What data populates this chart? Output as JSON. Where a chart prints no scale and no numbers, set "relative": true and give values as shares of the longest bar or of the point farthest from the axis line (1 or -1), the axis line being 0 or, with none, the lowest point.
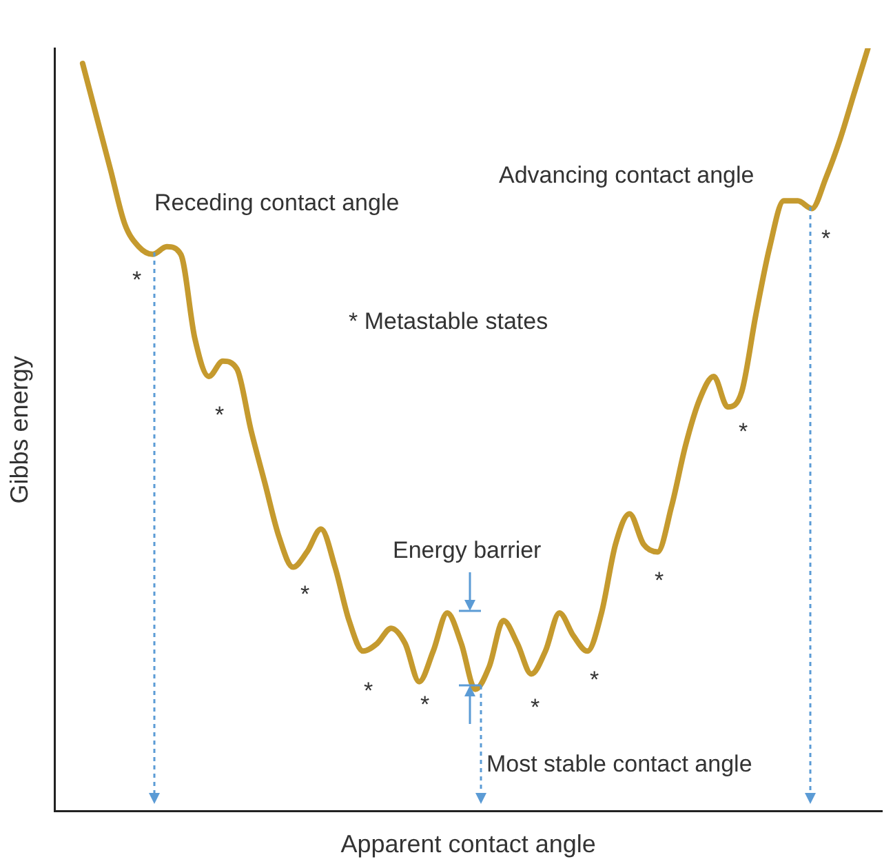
{
  "chart_data": {
    "type": "line",
    "relative": true,
    "xlabel": "Apparent contact angle",
    "ylabel": "Gibbs energy",
    "color": "#c59a2e",
    "marker": "none",
    "line_style": "solid",
    "legend": false,
    "grid": false,
    "categories": [
      null,
      null,
      null,
      null,
      null,
      null,
      null,
      null,
      null,
      null,
      null,
      null,
      null,
      null,
      null,
      null,
      null,
      null,
      null,
      null,
      null,
      null,
      null,
      null,
      null,
      null,
      null,
      null,
      null,
      null,
      null,
      null,
      null,
      null,
      null,
      null,
      null,
      null,
      null,
      null,
      null,
      null,
      null,
      null,
      null,
      null,
      null,
      null,
      null,
      null,
      null,
      null,
      null,
      null,
      null,
      null,
      null,
      null,
      null,
      null
    ],
    "values": [
      null,
      null,
      0.98,
      0.91,
      0.84,
      0.77,
      0.74,
      0.73,
      0.74,
      0.73,
      0.62,
      0.57,
      0.59,
      0.58,
      0.5,
      0.43,
      0.36,
      0.32,
      0.34,
      0.37,
      0.32,
      0.25,
      0.21,
      0.22,
      0.24,
      0.22,
      0.17,
      0.21,
      0.26,
      0.22,
      0.16,
      0.19,
      0.25,
      0.22,
      0.18,
      0.21,
      0.26,
      0.23,
      0.21,
      0.26,
      0.35,
      0.39,
      0.35,
      0.34,
      0.4,
      0.48,
      0.54,
      0.57,
      0.53,
      0.55,
      0.65,
      0.74,
      0.8,
      0.8,
      0.79,
      0.83,
      0.88,
      0.94,
      1,
      null
    ],
    "annotations": [
      "Receding contact angle",
      "Advancing contact angle",
      "* Metastable states",
      "Energy barrier",
      "Most stable contact angle",
      "*",
      "*",
      "*",
      "*",
      "*",
      "*",
      "*",
      "*",
      "*",
      "*"
    ]
  }
}
